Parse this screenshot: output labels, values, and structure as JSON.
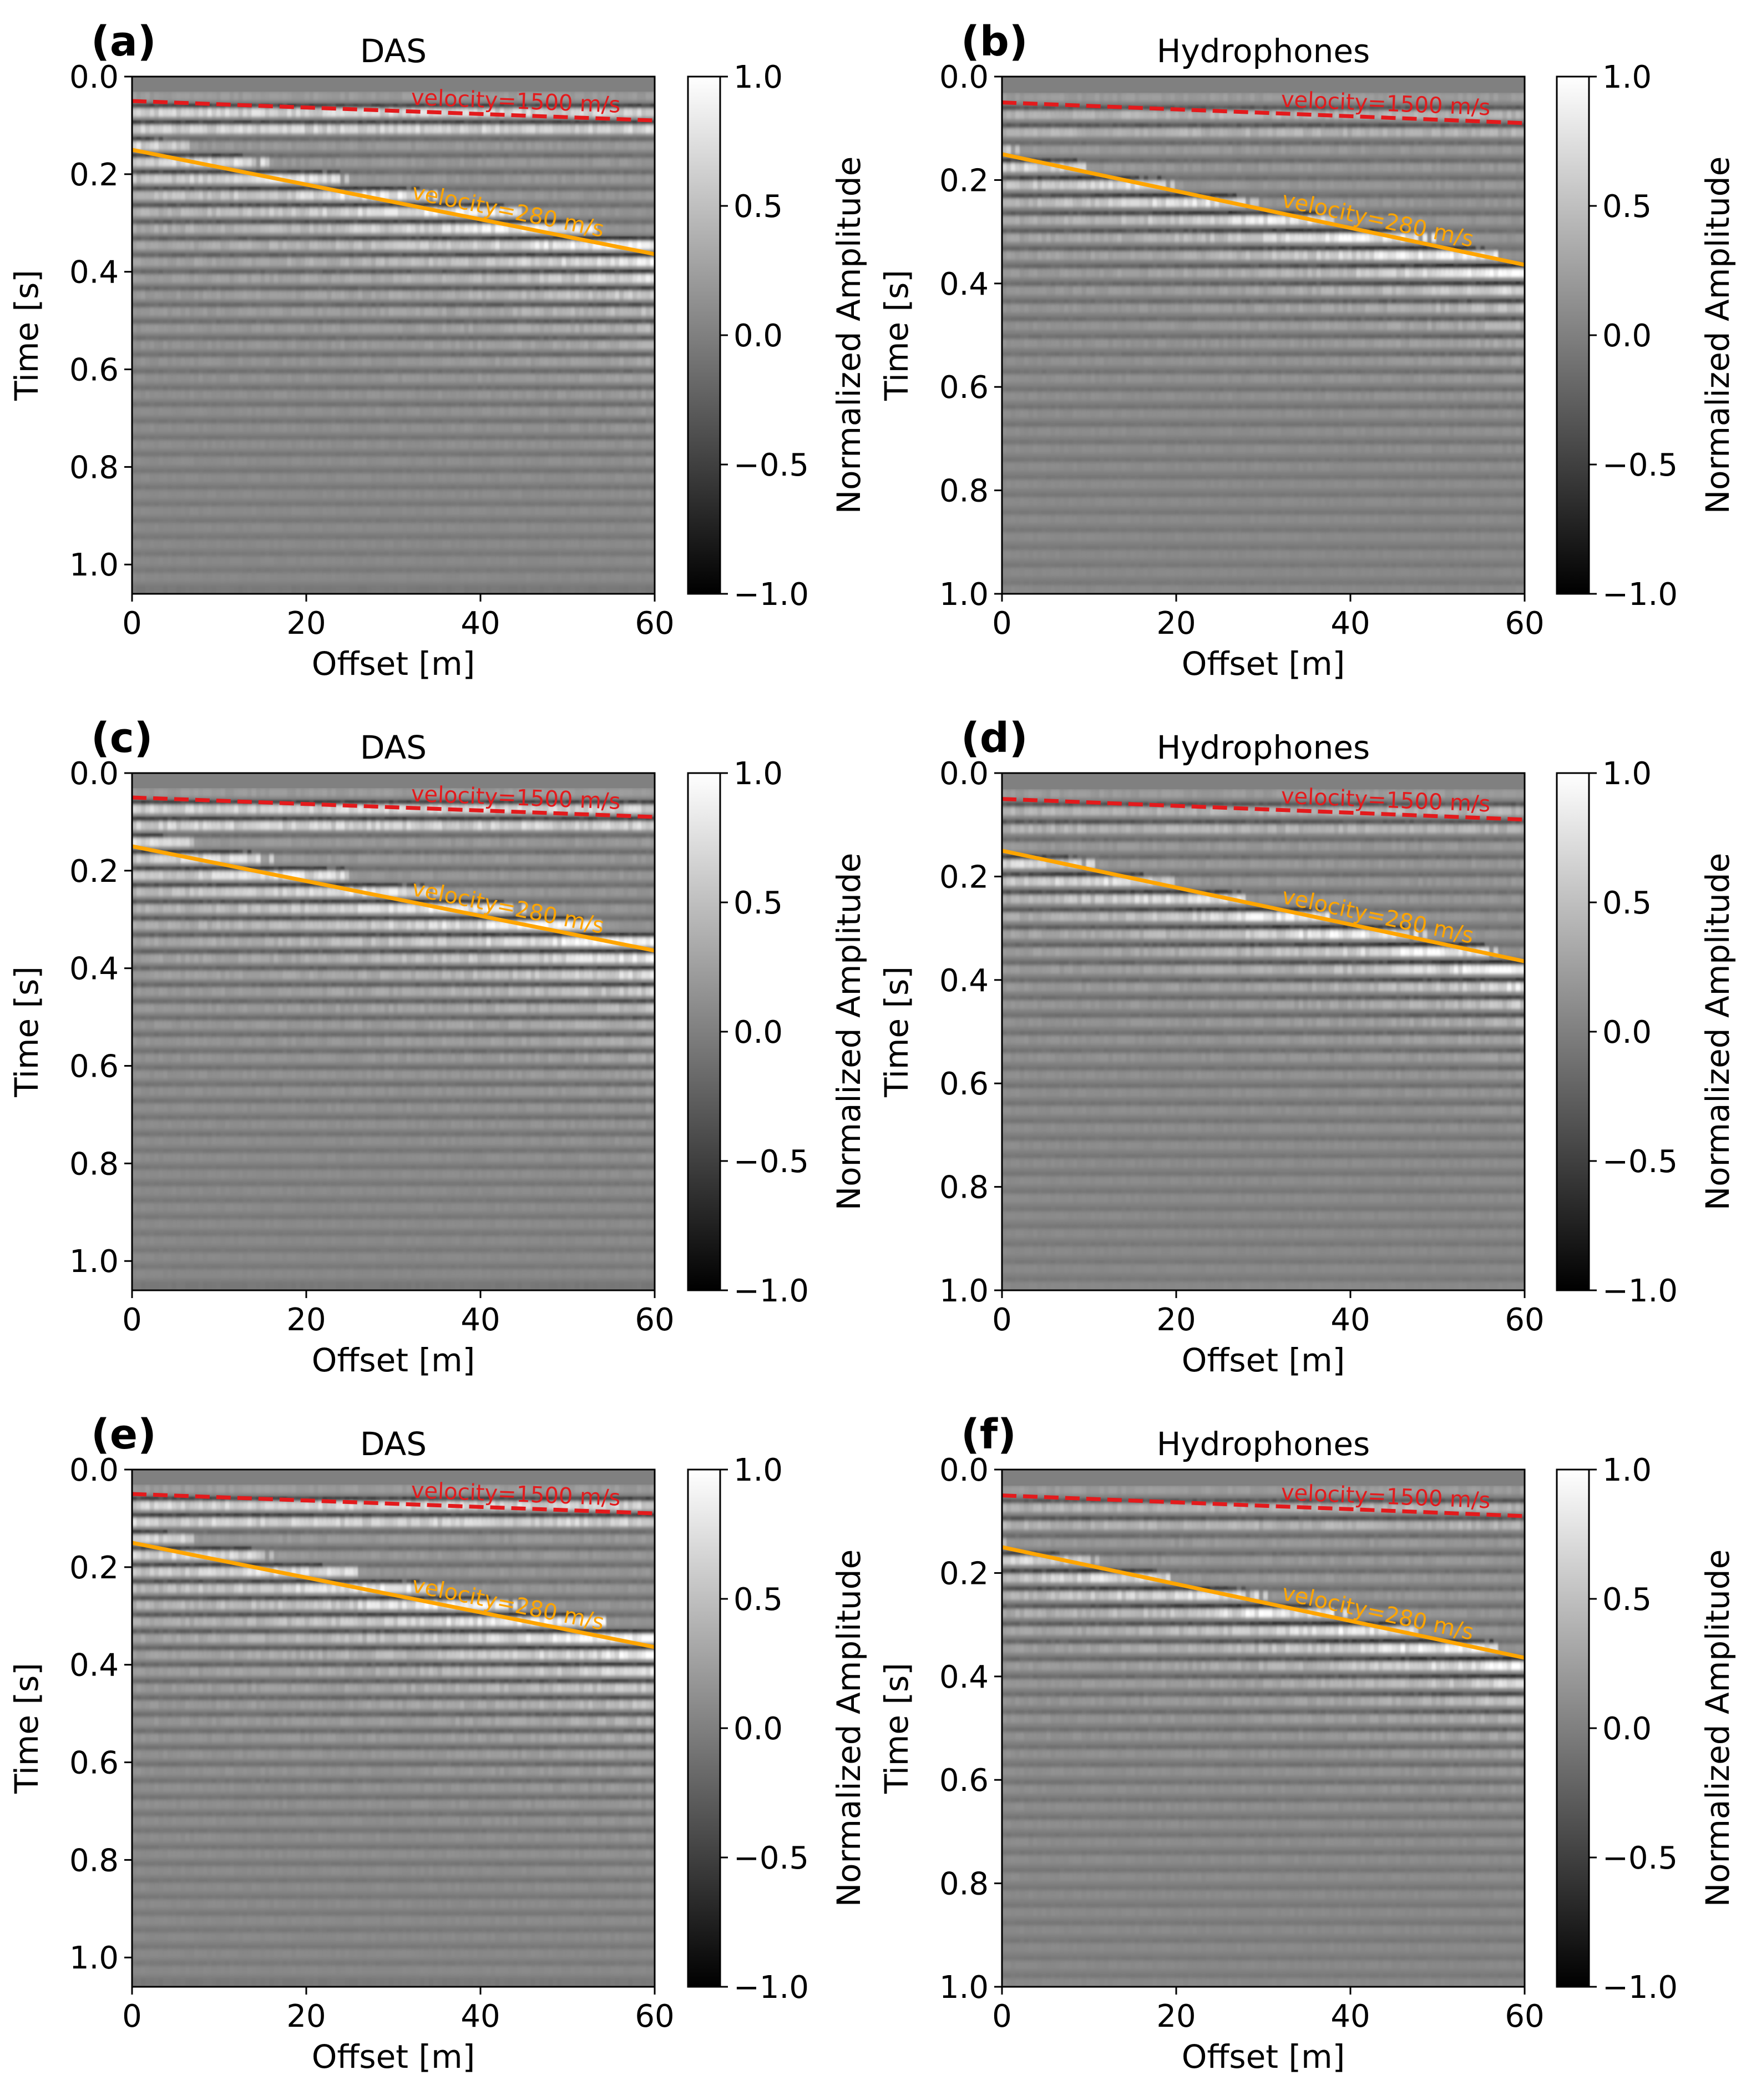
{
  "chart_data": [
    {
      "type": "heatmap",
      "panel_label": "(a)",
      "title": "DAS",
      "xlabel": "Offset [m]",
      "ylabel": "Time [s]",
      "xlim": [
        0,
        60
      ],
      "ylim": [
        1.06,
        0.0
      ],
      "xticks": [
        "0",
        "20",
        "40",
        "60"
      ],
      "yticks": [
        "0.0",
        "0.2",
        "0.4",
        "0.6",
        "0.8",
        "1.0"
      ],
      "colorbar": {
        "label": "Normalized Amplitude",
        "ticks": [
          "1.0",
          "0.5",
          "0.0",
          "−0.5",
          "−1.0"
        ],
        "range": [
          -1.0,
          1.0
        ],
        "colormap": "gray"
      },
      "lines": [
        {
          "label": "velocity=1500 m/s",
          "x": [
            0,
            60
          ],
          "y": [
            0.05,
            0.09
          ],
          "color": "#e31a1c",
          "style": "dashed"
        },
        {
          "label": "velocity=280 m/s",
          "x": [
            0,
            60
          ],
          "y": [
            0.15,
            0.364
          ],
          "color": "#ffa500",
          "style": "solid"
        }
      ]
    },
    {
      "type": "heatmap",
      "panel_label": "(b)",
      "title": "Hydrophones",
      "xlabel": "Offset [m]",
      "ylabel": "Time [s]",
      "xlim": [
        0,
        60
      ],
      "ylim": [
        1.0,
        0.0
      ],
      "xticks": [
        "0",
        "20",
        "40",
        "60"
      ],
      "yticks": [
        "0.0",
        "0.2",
        "0.4",
        "0.6",
        "0.8",
        "1.0"
      ],
      "colorbar": {
        "label": "Normalized Amplitude",
        "ticks": [
          "1.0",
          "0.5",
          "0.0",
          "−0.5",
          "−1.0"
        ],
        "range": [
          -1.0,
          1.0
        ],
        "colormap": "gray"
      },
      "lines": [
        {
          "label": "velocity=1500 m/s",
          "x": [
            0,
            60
          ],
          "y": [
            0.05,
            0.09
          ],
          "color": "#e31a1c",
          "style": "dashed"
        },
        {
          "label": "velocity=280 m/s",
          "x": [
            0,
            60
          ],
          "y": [
            0.15,
            0.364
          ],
          "color": "#ffa500",
          "style": "solid"
        }
      ]
    },
    {
      "type": "heatmap",
      "panel_label": "(c)",
      "title": "DAS",
      "xlabel": "Offset [m]",
      "ylabel": "Time [s]",
      "xlim": [
        0,
        60
      ],
      "ylim": [
        1.06,
        0.0
      ],
      "xticks": [
        "0",
        "20",
        "40",
        "60"
      ],
      "yticks": [
        "0.0",
        "0.2",
        "0.4",
        "0.6",
        "0.8",
        "1.0"
      ],
      "colorbar": {
        "label": "Normalized Amplitude",
        "ticks": [
          "1.0",
          "0.5",
          "0.0",
          "−0.5",
          "−1.0"
        ],
        "range": [
          -1.0,
          1.0
        ],
        "colormap": "gray"
      },
      "lines": [
        {
          "label": "velocity=1500 m/s",
          "x": [
            0,
            60
          ],
          "y": [
            0.05,
            0.09
          ],
          "color": "#e31a1c",
          "style": "dashed"
        },
        {
          "label": "velocity=280 m/s",
          "x": [
            0,
            60
          ],
          "y": [
            0.15,
            0.364
          ],
          "color": "#ffa500",
          "style": "solid"
        }
      ]
    },
    {
      "type": "heatmap",
      "panel_label": "(d)",
      "title": "Hydrophones",
      "xlabel": "Offset [m]",
      "ylabel": "Time [s]",
      "xlim": [
        0,
        60
      ],
      "ylim": [
        1.0,
        0.0
      ],
      "xticks": [
        "0",
        "20",
        "40",
        "60"
      ],
      "yticks": [
        "0.0",
        "0.2",
        "0.4",
        "0.6",
        "0.8",
        "1.0"
      ],
      "colorbar": {
        "label": "Normalized Amplitude",
        "ticks": [
          "1.0",
          "0.5",
          "0.0",
          "−0.5",
          "−1.0"
        ],
        "range": [
          -1.0,
          1.0
        ],
        "colormap": "gray"
      },
      "lines": [
        {
          "label": "velocity=1500 m/s",
          "x": [
            0,
            60
          ],
          "y": [
            0.05,
            0.09
          ],
          "color": "#e31a1c",
          "style": "dashed"
        },
        {
          "label": "velocity=280 m/s",
          "x": [
            0,
            60
          ],
          "y": [
            0.15,
            0.364
          ],
          "color": "#ffa500",
          "style": "solid"
        }
      ]
    },
    {
      "type": "heatmap",
      "panel_label": "(e)",
      "title": "DAS",
      "xlabel": "Offset [m]",
      "ylabel": "Time [s]",
      "xlim": [
        0,
        60
      ],
      "ylim": [
        1.06,
        0.0
      ],
      "xticks": [
        "0",
        "20",
        "40",
        "60"
      ],
      "yticks": [
        "0.0",
        "0.2",
        "0.4",
        "0.6",
        "0.8",
        "1.0"
      ],
      "colorbar": {
        "label": "Normalized Amplitude",
        "ticks": [
          "1.0",
          "0.5",
          "0.0",
          "−0.5",
          "−1.0"
        ],
        "range": [
          -1.0,
          1.0
        ],
        "colormap": "gray"
      },
      "lines": [
        {
          "label": "velocity=1500 m/s",
          "x": [
            0,
            60
          ],
          "y": [
            0.05,
            0.09
          ],
          "color": "#e31a1c",
          "style": "dashed"
        },
        {
          "label": "velocity=280 m/s",
          "x": [
            0,
            60
          ],
          "y": [
            0.15,
            0.364
          ],
          "color": "#ffa500",
          "style": "solid"
        }
      ]
    },
    {
      "type": "heatmap",
      "panel_label": "(f)",
      "title": "Hydrophones",
      "xlabel": "Offset [m]",
      "ylabel": "Time [s]",
      "xlim": [
        0,
        60
      ],
      "ylim": [
        1.0,
        0.0
      ],
      "xticks": [
        "0",
        "20",
        "40",
        "60"
      ],
      "yticks": [
        "0.0",
        "0.2",
        "0.4",
        "0.6",
        "0.8",
        "1.0"
      ],
      "colorbar": {
        "label": "Normalized Amplitude",
        "ticks": [
          "1.0",
          "0.5",
          "0.0",
          "−0.5",
          "−1.0"
        ],
        "range": [
          -1.0,
          1.0
        ],
        "colormap": "gray"
      },
      "lines": [
        {
          "label": "velocity=1500 m/s",
          "x": [
            0,
            60
          ],
          "y": [
            0.05,
            0.09
          ],
          "color": "#e31a1c",
          "style": "dashed"
        },
        {
          "label": "velocity=280 m/s",
          "x": [
            0,
            60
          ],
          "y": [
            0.15,
            0.364
          ],
          "color": "#ffa500",
          "style": "solid"
        }
      ]
    }
  ]
}
